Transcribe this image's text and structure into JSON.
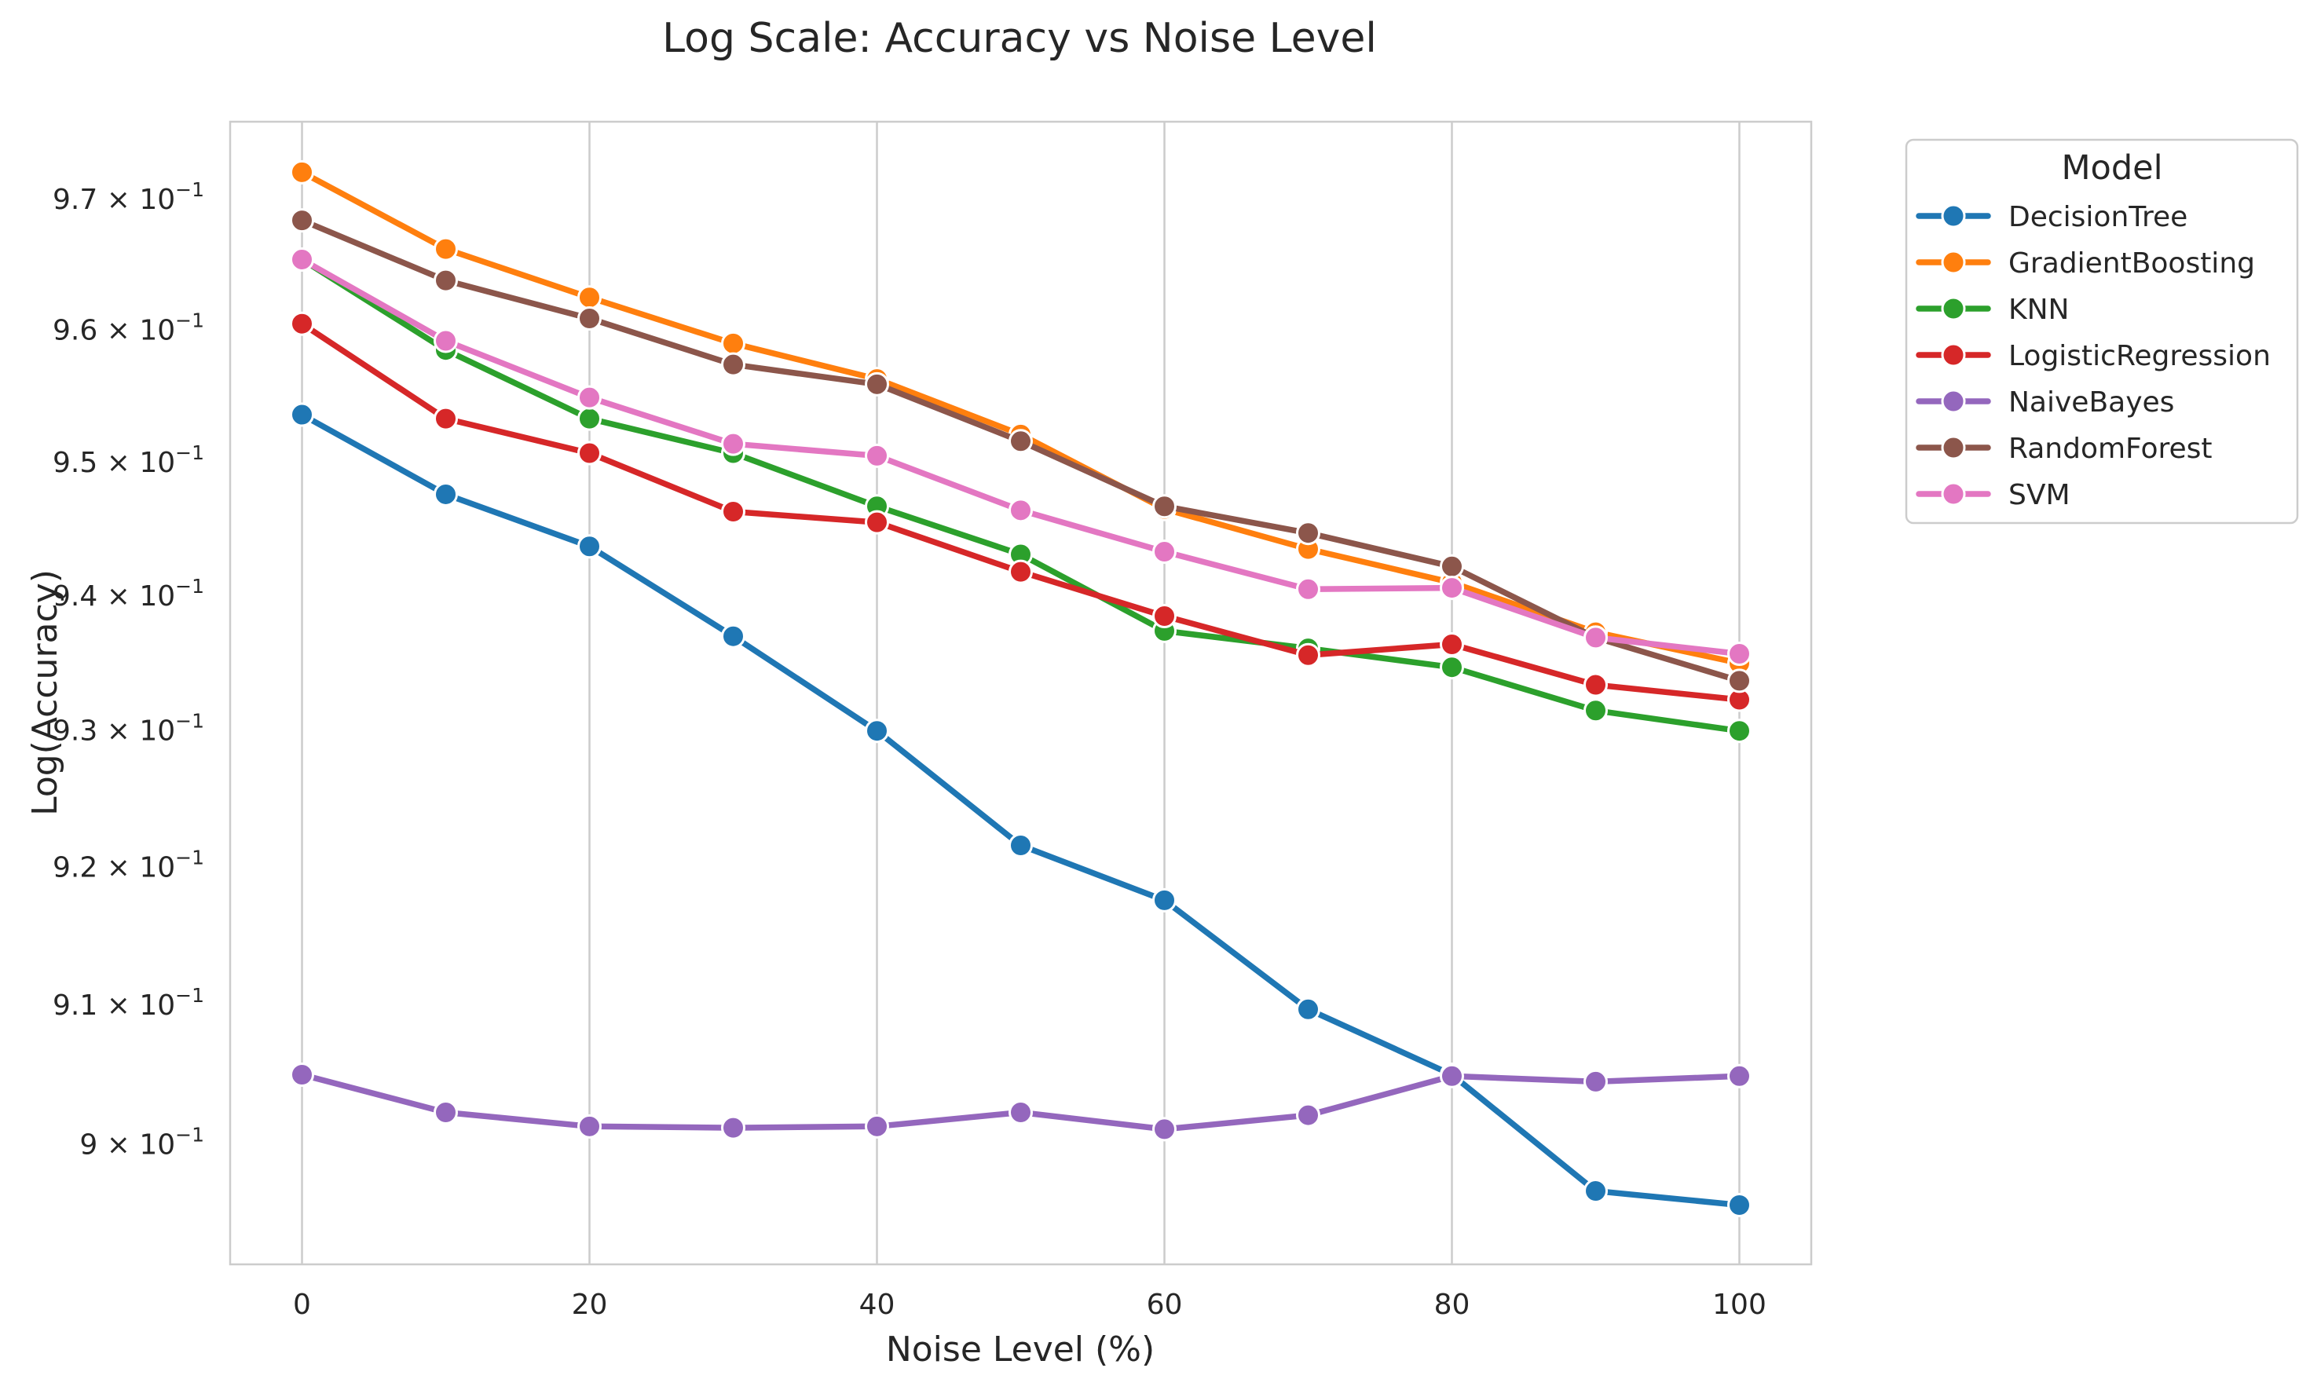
{
  "chart_data": {
    "type": "line",
    "title": "Log Scale: Accuracy vs Noise Level",
    "xlabel": "Noise Level (%)",
    "ylabel": "Log(Accuracy)",
    "y_scale": "log",
    "grid": "vertical lines at x ticks",
    "x": [
      0,
      10,
      20,
      30,
      40,
      50,
      60,
      70,
      80,
      90,
      100
    ],
    "xlim": [
      -5,
      105
    ],
    "ylim": [
      0.8915,
      0.976
    ],
    "x_ticks": [
      0,
      20,
      40,
      60,
      80,
      100
    ],
    "y_ticks": [
      {
        "value": 0.9,
        "mantissa": "9",
        "exponent": "−1"
      },
      {
        "value": 0.91,
        "mantissa": "9.1",
        "exponent": "−1"
      },
      {
        "value": 0.92,
        "mantissa": "9.2",
        "exponent": "−1"
      },
      {
        "value": 0.93,
        "mantissa": "9.3",
        "exponent": "−1"
      },
      {
        "value": 0.94,
        "mantissa": "9.4",
        "exponent": "−1"
      },
      {
        "value": 0.95,
        "mantissa": "9.5",
        "exponent": "−1"
      },
      {
        "value": 0.96,
        "mantissa": "9.6",
        "exponent": "−1"
      },
      {
        "value": 0.97,
        "mantissa": "9.7",
        "exponent": "−1"
      }
    ],
    "legend": {
      "title": "Model",
      "placement": "outside right, upper"
    },
    "series": [
      {
        "name": "DecisionTree",
        "color": "#1f77b4",
        "values": [
          0.9536,
          0.9476,
          0.9437,
          0.937,
          0.93,
          0.9216,
          0.9176,
          0.9097,
          0.905,
          0.8967,
          0.8957
        ]
      },
      {
        "name": "GradientBoosting",
        "color": "#ff7f0e",
        "values": [
          0.9721,
          0.9662,
          0.9625,
          0.959,
          0.9563,
          0.9521,
          0.9465,
          0.9435,
          0.941,
          0.9373,
          0.935
        ]
      },
      {
        "name": "KNN",
        "color": "#2ca02c",
        "values": [
          0.9654,
          0.9585,
          0.9533,
          0.9507,
          0.9467,
          0.9431,
          0.9374,
          0.9361,
          0.9347,
          0.9315,
          0.93
        ]
      },
      {
        "name": "LogisticRegression",
        "color": "#d62728",
        "values": [
          0.9605,
          0.9533,
          0.9507,
          0.9463,
          0.9455,
          0.9418,
          0.9385,
          0.9356,
          0.9364,
          0.9334,
          0.9323
        ]
      },
      {
        "name": "NaiveBayes",
        "color": "#9467bd",
        "values": [
          0.905,
          0.9023,
          0.9013,
          0.9012,
          0.9013,
          0.9023,
          0.9011,
          0.9021,
          0.9049,
          0.9045,
          0.9049
        ]
      },
      {
        "name": "RandomForest",
        "color": "#8c564b",
        "values": [
          0.9684,
          0.9638,
          0.9609,
          0.9574,
          0.9559,
          0.9516,
          0.9467,
          0.9447,
          0.9422,
          0.9369,
          0.9337
        ]
      },
      {
        "name": "SVM",
        "color": "#e377c2",
        "values": [
          0.9654,
          0.9592,
          0.9549,
          0.9514,
          0.9505,
          0.9464,
          0.9433,
          0.9405,
          0.9406,
          0.9369,
          0.9357
        ]
      }
    ]
  }
}
